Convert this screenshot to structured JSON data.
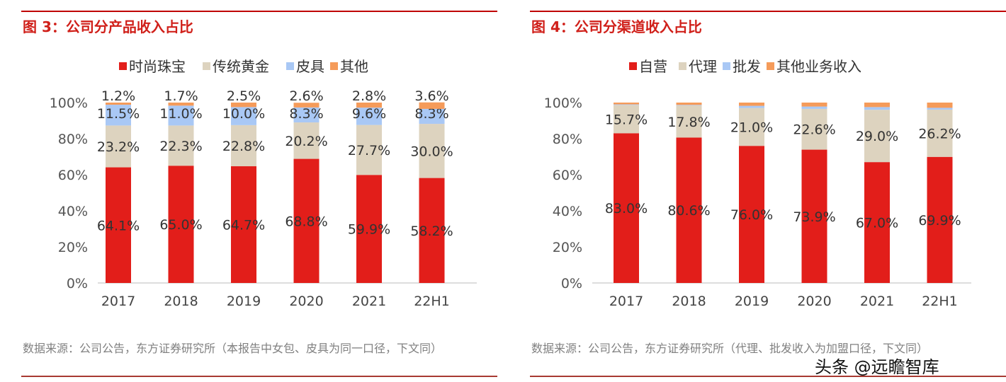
{
  "chart_data": [
    {
      "type": "bar",
      "stacked": true,
      "title": "图 3：公司分产品收入占比",
      "categories": [
        "2017",
        "2018",
        "2019",
        "2020",
        "2021",
        "22H1"
      ],
      "ylim": [
        0,
        100
      ],
      "yticks": [
        "0%",
        "20%",
        "40%",
        "60%",
        "80%",
        "100%"
      ],
      "grid": false,
      "legend": "top",
      "series": [
        {
          "name": "时尚珠宝",
          "color": "#e21e1a",
          "values": [
            64.1,
            65.0,
            64.7,
            68.8,
            59.9,
            58.2
          ],
          "labels": [
            "64.1%",
            "65.0%",
            "64.7%",
            "68.8%",
            "59.9%",
            "58.2%"
          ]
        },
        {
          "name": "传统黄金",
          "color": "#ddd3bf",
          "values": [
            23.2,
            22.3,
            22.8,
            20.2,
            27.7,
            30.0
          ],
          "labels": [
            "23.2%",
            "22.3%",
            "22.8%",
            "20.2%",
            "27.7%",
            "30.0%"
          ]
        },
        {
          "name": "皮具",
          "color": "#a9c8f5",
          "values": [
            11.5,
            11.0,
            10.0,
            8.3,
            9.6,
            8.3
          ],
          "labels": [
            "11.5%",
            "11.0%",
            "10.0%",
            "8.3%",
            "9.6%",
            "8.3%"
          ]
        },
        {
          "name": "其他",
          "color": "#f59b5a",
          "values": [
            1.2,
            1.7,
            2.5,
            2.6,
            2.8,
            3.6
          ],
          "labels": [
            "1.2%",
            "1.7%",
            "2.5%",
            "2.6%",
            "2.8%",
            "3.6%"
          ]
        }
      ],
      "note": "数据来源：公司公告，东方证券研究所（本报告中女包、皮具为同一口径，下文同）"
    },
    {
      "type": "bar",
      "stacked": true,
      "title": "图 4：公司分渠道收入占比",
      "categories": [
        "2017",
        "2018",
        "2019",
        "2020",
        "2021",
        "22H1"
      ],
      "ylim": [
        0,
        100
      ],
      "yticks": [
        "0%",
        "20%",
        "40%",
        "60%",
        "80%",
        "100%"
      ],
      "grid": false,
      "legend": "top",
      "series": [
        {
          "name": "自营",
          "color": "#e21e1a",
          "values": [
            83.0,
            80.6,
            76.0,
            73.9,
            67.0,
            69.9
          ],
          "labels": [
            "83.0%",
            "80.6%",
            "76.0%",
            "73.9%",
            "67.0%",
            "69.9%"
          ]
        },
        {
          "name": "代理",
          "color": "#ddd3bf",
          "values": [
            15.7,
            17.8,
            21.0,
            22.6,
            29.0,
            26.2
          ],
          "labels": [
            "15.7%",
            "17.8%",
            "21.0%",
            "22.6%",
            "29.0%",
            "26.2%"
          ]
        },
        {
          "name": "批发",
          "color": "#a9c8f5",
          "values": [
            0.3,
            0.3,
            1.2,
            1.3,
            1.5,
            1.0
          ],
          "labels": null
        },
        {
          "name": "其他业务收入",
          "color": "#f59b5a",
          "values": [
            1.0,
            1.3,
            1.8,
            2.2,
            2.5,
            2.9
          ],
          "labels": null
        }
      ],
      "note": "数据来源：公司公告，东方证券研究所（代理、批发收入为加盟口径，下文同）"
    }
  ],
  "watermark": "头条 @远瞻智库"
}
